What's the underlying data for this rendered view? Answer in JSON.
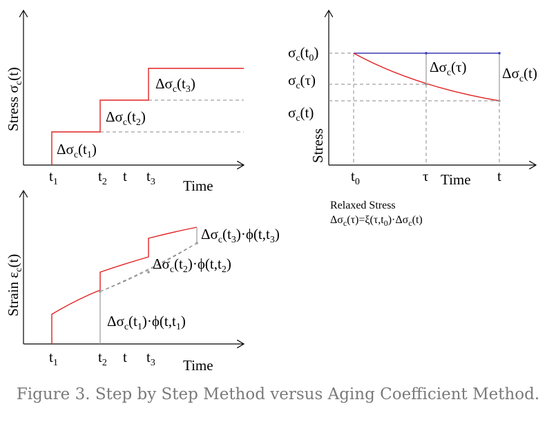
{
  "caption": "Figure 3. Step by Step Method versus Aging Coefficient Method.",
  "panel_stress": {
    "ylabel": {
      "main": "Stress σ",
      "sub": "c",
      "tail": "(t)"
    },
    "xlabel": "Time",
    "ticks": [
      {
        "main": "t",
        "sub": "1"
      },
      {
        "main": "t",
        "sub": "2"
      },
      {
        "main": "t",
        "sub": ""
      },
      {
        "main": "t",
        "sub": "3"
      }
    ],
    "steps": [
      {
        "main": "Δσ",
        "sub1": "c",
        "mid": "(t",
        "sub2": "1",
        "tail": ")"
      },
      {
        "main": "Δσ",
        "sub1": "c",
        "mid": "(t",
        "sub2": "2",
        "tail": ")"
      },
      {
        "main": "Δσ",
        "sub1": "c",
        "mid": "(t",
        "sub2": "3",
        "tail": ")"
      }
    ]
  },
  "panel_strain": {
    "ylabel": {
      "main": "Strain ε",
      "sub": "c",
      "tail": "(t)"
    },
    "xlabel": "Time",
    "ticks": [
      {
        "main": "t",
        "sub": "1"
      },
      {
        "main": "t",
        "sub": "2"
      },
      {
        "main": "t",
        "sub": ""
      },
      {
        "main": "t",
        "sub": "3"
      }
    ],
    "increments": [
      {
        "a": "Δσ",
        "b": "c",
        "c": "(t",
        "d": "1",
        "e": ")·ϕ(t,t",
        "f": "1",
        "g": ")"
      },
      {
        "a": "Δσ",
        "b": "c",
        "c": "(t",
        "d": "2",
        "e": ")·ϕ(t,t",
        "f": "2",
        "g": ")"
      },
      {
        "a": "Δσ",
        "b": "c",
        "c": "(t",
        "d": "3",
        "e": ")·ϕ(t,t",
        "f": "3",
        "g": ")"
      }
    ]
  },
  "panel_relax": {
    "ylabel": "Stress",
    "xlabel": "Time",
    "ylabels": [
      {
        "main": "σ",
        "sub": "c",
        "mid": "(t",
        "sub2": "0",
        "tail": ")"
      },
      {
        "main": "σ",
        "sub": "c",
        "mid": "(τ)",
        "sub2": "",
        "tail": ""
      },
      {
        "main": "σ",
        "sub": "c",
        "mid": "(t)",
        "sub2": "",
        "tail": ""
      }
    ],
    "ticks": [
      {
        "main": "t",
        "sub": "0"
      },
      {
        "main": "τ",
        "sub": ""
      },
      {
        "main": "t",
        "sub": ""
      }
    ],
    "delta_tau": {
      "main": "Δσ",
      "sub": "c",
      "tail": "(τ)"
    },
    "delta_t": {
      "main": "Δσ",
      "sub": "c",
      "tail": "(t)"
    },
    "note_title": "Relaxed Stress",
    "note_formula": {
      "a": "Δσ",
      "b": "c",
      "c": "(τ)=ξ(τ,t",
      "d": "0",
      "e": ")·Δσ",
      "f": "c",
      "g": "(t)"
    }
  }
}
